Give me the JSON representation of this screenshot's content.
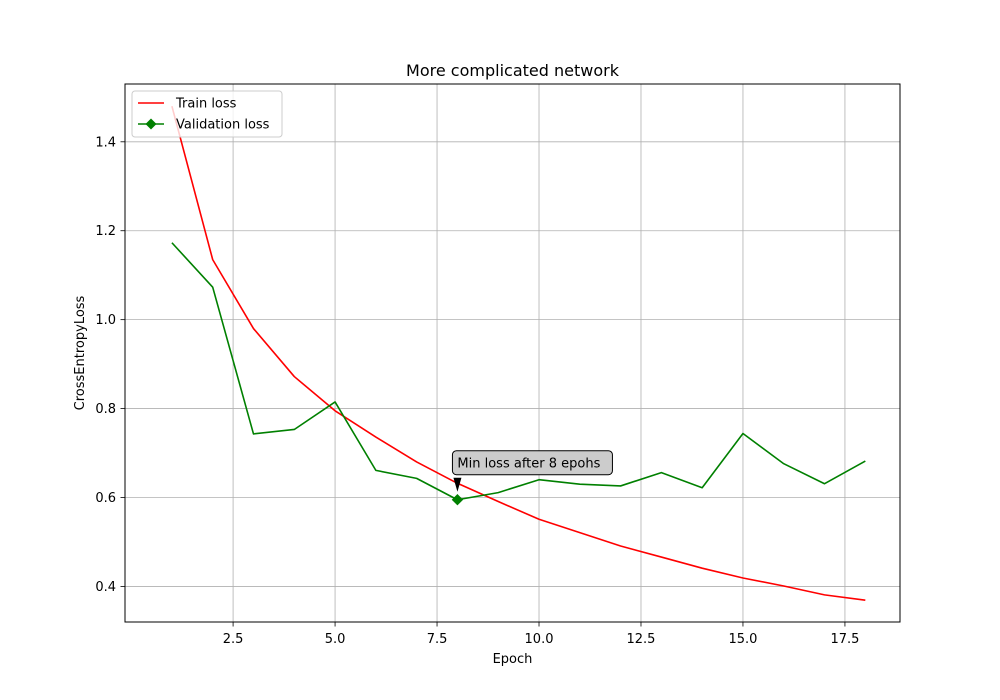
{
  "chart_data": {
    "type": "line",
    "title": "More complicated network",
    "xlabel": "Epoch",
    "ylabel": "CrossEntropyLoss",
    "xlim": [
      -0.15,
      18.85
    ],
    "ylim": [
      0.32,
      1.53
    ],
    "xticks": [
      2.5,
      5.0,
      7.5,
      10.0,
      12.5,
      15.0,
      17.5
    ],
    "xtick_labels": [
      "2.5",
      "5.0",
      "7.5",
      "10.0",
      "12.5",
      "15.0",
      "17.5"
    ],
    "yticks": [
      0.4,
      0.6,
      0.8,
      1.0,
      1.2,
      1.4
    ],
    "ytick_labels": [
      "0.4",
      "0.6",
      "0.8",
      "1.0",
      "1.2",
      "1.4"
    ],
    "grid": true,
    "legend_position": "top-left",
    "series": [
      {
        "name": "Train loss",
        "color": "#ff0000",
        "x": [
          1,
          2,
          3,
          4,
          5,
          6,
          7,
          8,
          9,
          10,
          11,
          12,
          13,
          14,
          15,
          16,
          17,
          18
        ],
        "values": [
          1.48,
          1.135,
          0.98,
          0.872,
          0.795,
          0.736,
          0.68,
          0.632,
          0.591,
          0.551,
          0.521,
          0.491,
          0.466,
          0.441,
          0.419,
          0.401,
          0.381,
          0.369
        ]
      },
      {
        "name": "Validation loss",
        "color": "#008000",
        "marker": "diamond",
        "x": [
          1,
          2,
          3,
          4,
          5,
          6,
          7,
          8,
          9,
          10,
          11,
          12,
          13,
          14,
          15,
          16,
          17,
          18
        ],
        "values": [
          1.173,
          1.073,
          0.743,
          0.753,
          0.815,
          0.661,
          0.643,
          0.595,
          0.611,
          0.64,
          0.63,
          0.626,
          0.656,
          0.622,
          0.744,
          0.676,
          0.631,
          0.682
        ]
      }
    ],
    "annotation": {
      "text": "Min loss after 8 epohs",
      "x": 8,
      "y": 0.595
    }
  }
}
